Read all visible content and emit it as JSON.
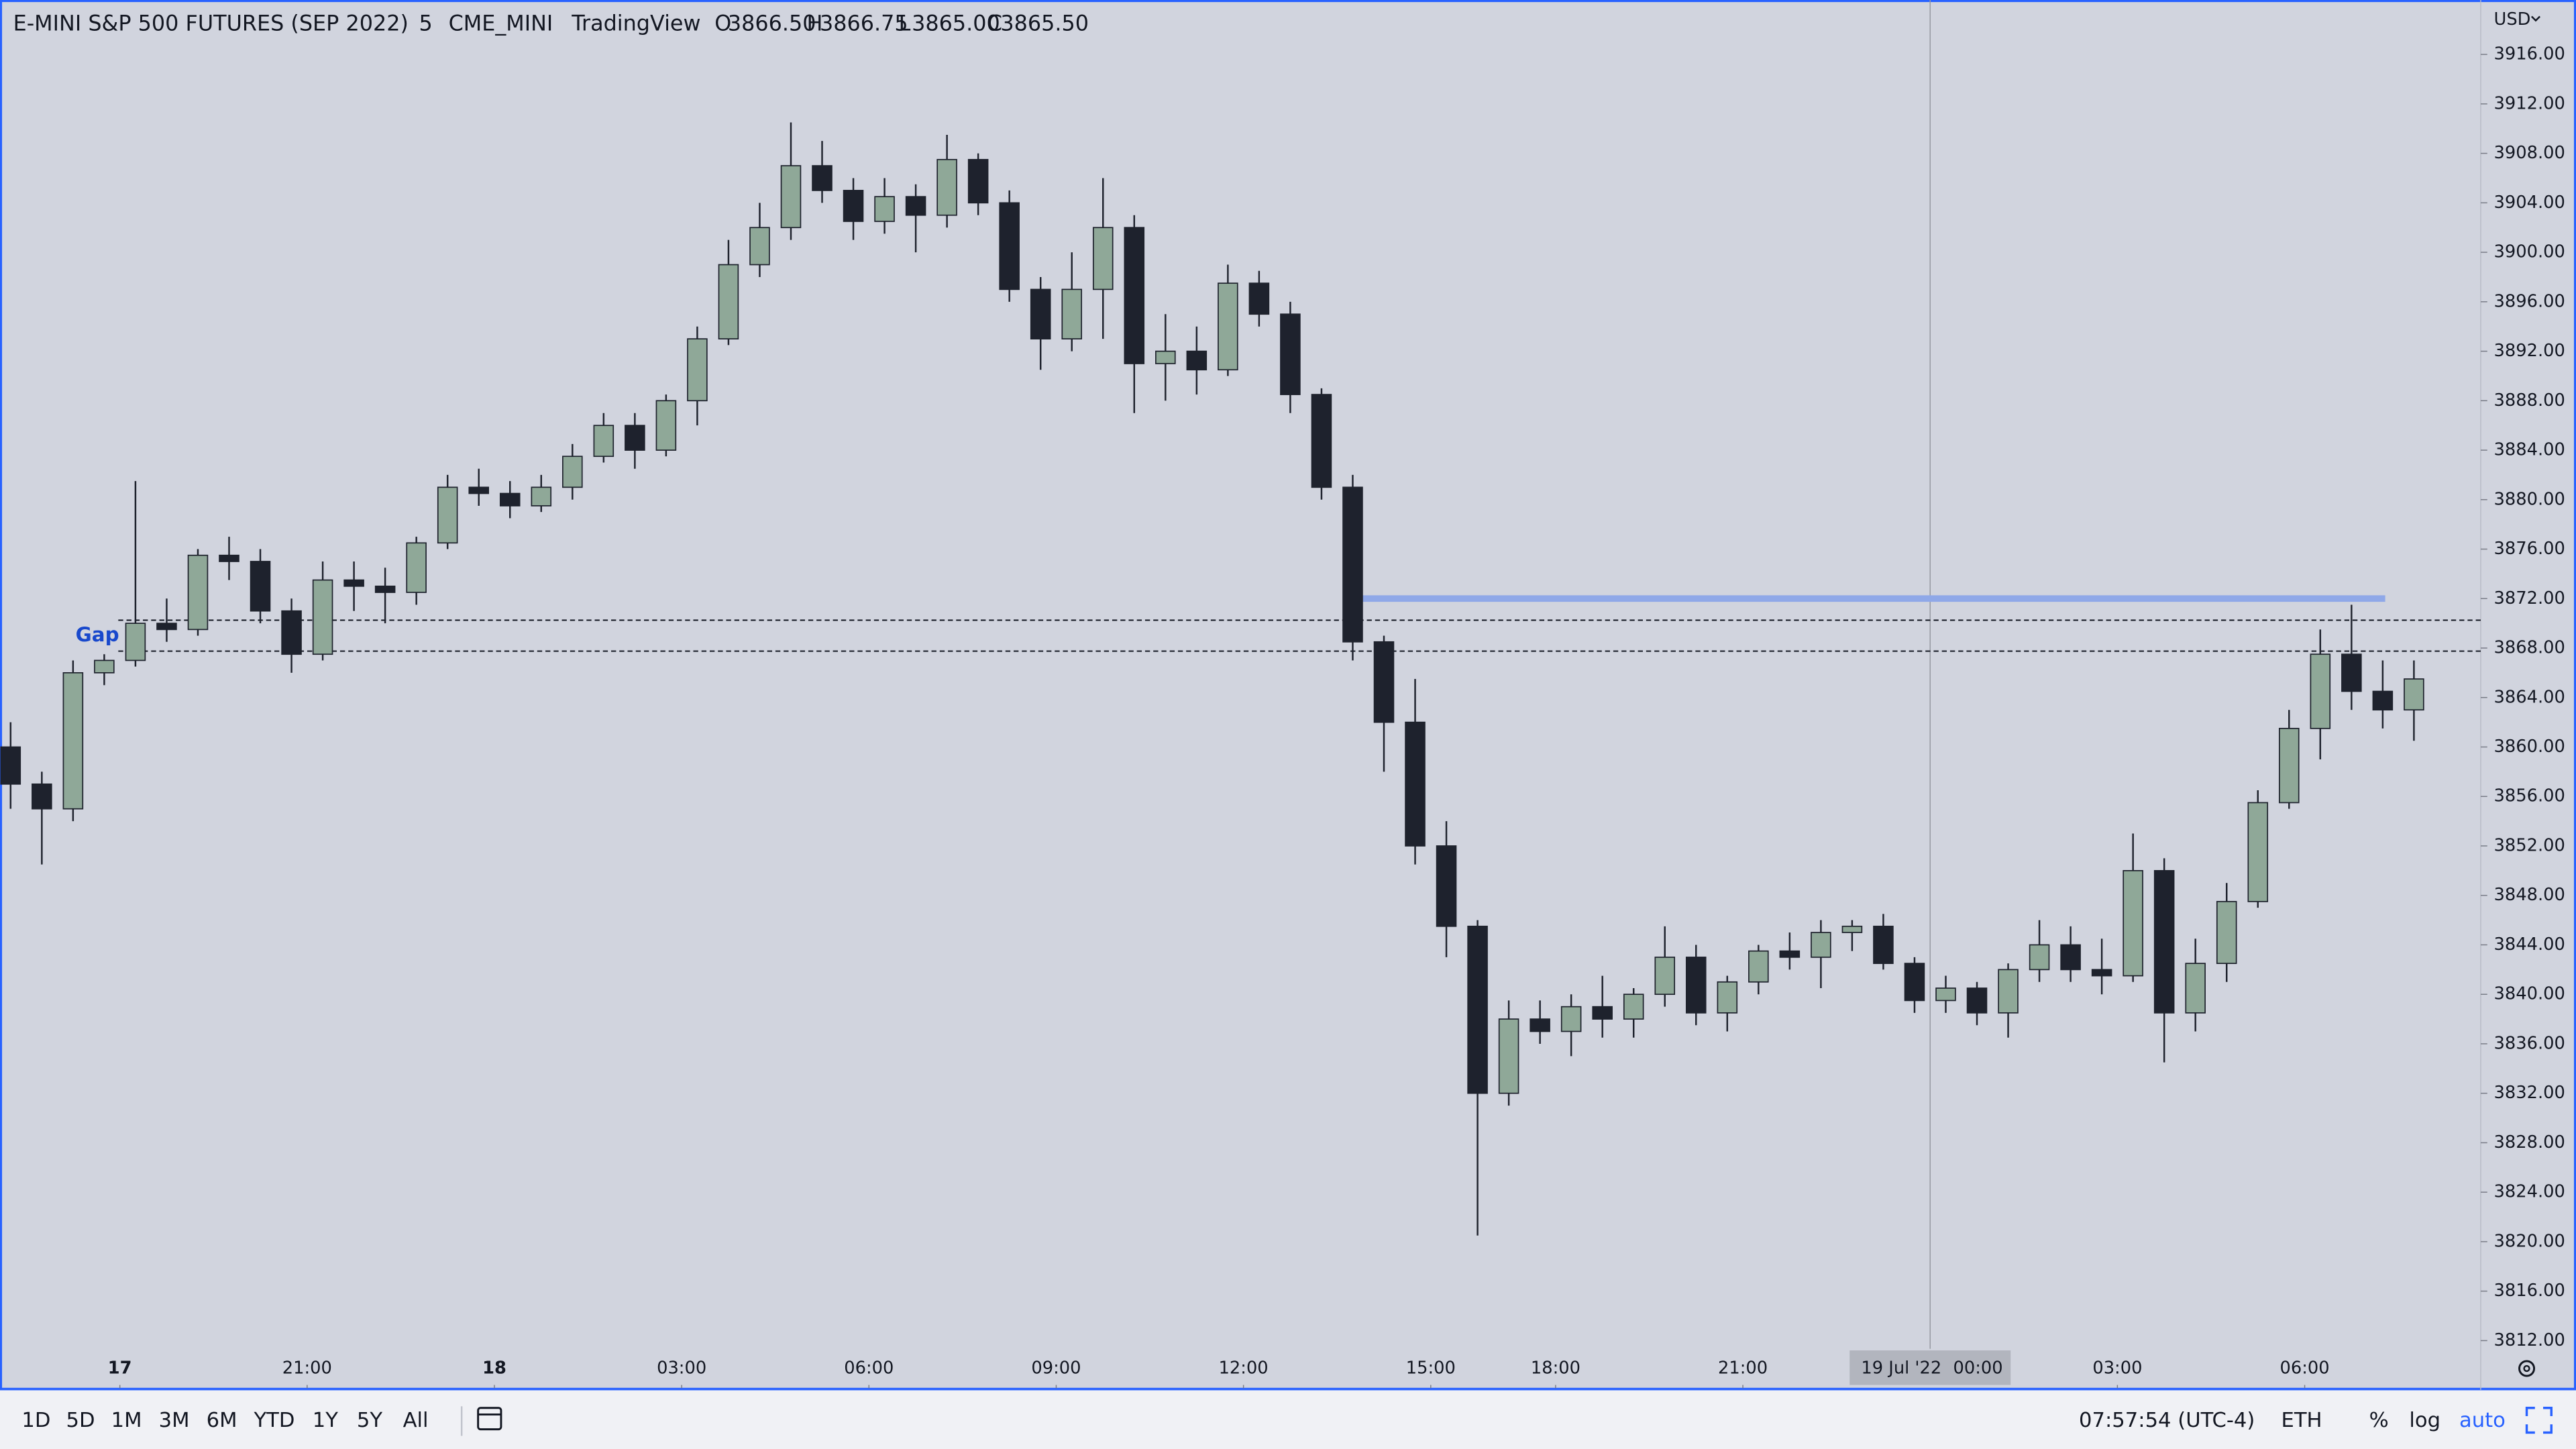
{
  "chart_data": {
    "type": "candlestick",
    "title": "E-MINI S&P 500 FUTURES (SEP 2022)",
    "interval": "5",
    "exchange": "CME_MINI",
    "source": "TradingView",
    "legend_ohlc": [
      {
        "label": "O",
        "value": "3866.50"
      },
      {
        "label": "H",
        "value": "3866.75"
      },
      {
        "label": "L",
        "value": "3865.00"
      },
      {
        "label": "C",
        "value": "3865.50"
      }
    ],
    "currency": "USD",
    "x": [
      -1.75,
      -1.25,
      -0.75,
      -0.25,
      0.25,
      0.75,
      1.25,
      1.75,
      2.25,
      2.75,
      3.25,
      3.75,
      4.25,
      4.75,
      5.25,
      5.75,
      6.25,
      6.75,
      7.25,
      7.75,
      8.25,
      8.75,
      9.25,
      9.75,
      10.25,
      10.75,
      11.25,
      11.75,
      12.25,
      12.75,
      13.25,
      13.75,
      14.25,
      14.75,
      15.25,
      15.75,
      16.25,
      16.75,
      17.25,
      17.75,
      18.25,
      18.75,
      19.25,
      19.75,
      20.25,
      20.75,
      21.25,
      21.75,
      22.25,
      22.75,
      23.25,
      23.75,
      24.25,
      24.75,
      25.25,
      25.75,
      26.25,
      26.75,
      27.25,
      27.75,
      28.25,
      28.75,
      29.25,
      29.75,
      30.25,
      30.75,
      31.25,
      31.75,
      32.25,
      32.75,
      33.25,
      33.75,
      34.25,
      34.75,
      35.25,
      35.75,
      36.25,
      36.75
    ],
    "open": [
      3860,
      3857,
      3855,
      3866,
      3867,
      3870,
      3869.5,
      3875.5,
      3875,
      3871,
      3867.5,
      3873.5,
      3873,
      3872.5,
      3876.5,
      3881,
      3880.5,
      3879.5,
      3881,
      3883.5,
      3886,
      3884,
      3888,
      3893,
      3899,
      3902,
      3907,
      3905,
      3902.5,
      3904.5,
      3903,
      3907.5,
      3904,
      3897,
      3893,
      3897,
      3902,
      3891,
      3892,
      3890.5,
      3897.5,
      3895,
      3888.5,
      3881,
      3868.5,
      3862,
      3852,
      3845.5,
      3832,
      3838,
      3837,
      3839,
      3838,
      3840,
      3843,
      3838.5,
      3841,
      3843.5,
      3843,
      3845,
      3845.5,
      3842.5,
      3839.5,
      3840.5,
      3838.5,
      3842,
      3844,
      3842,
      3841.5,
      3850,
      3838.5,
      3842.5,
      3847.5,
      3855.5,
      3861.5,
      3867.5,
      3864.5,
      3863
    ],
    "high": [
      3862,
      3858,
      3867,
      3867.5,
      3881.5,
      3872,
      3876,
      3877,
      3876,
      3872,
      3875,
      3875,
      3874.5,
      3877,
      3882,
      3882.5,
      3881.5,
      3882,
      3884.5,
      3887,
      3887,
      3888.5,
      3894,
      3901,
      3904,
      3910.5,
      3909,
      3906,
      3906,
      3905.5,
      3909.5,
      3908,
      3905,
      3898,
      3900,
      3906,
      3903,
      3895,
      3894,
      3899,
      3898.5,
      3896,
      3889,
      3882,
      3869,
      3865.5,
      3854,
      3846,
      3839.5,
      3839.5,
      3840,
      3841.5,
      3840.5,
      3845.5,
      3844,
      3841.5,
      3844,
      3845,
      3846,
      3846,
      3846.5,
      3843,
      3841.5,
      3841,
      3842.5,
      3846,
      3845.5,
      3844.5,
      3853,
      3851,
      3844.5,
      3849,
      3856.5,
      3863,
      3869.5,
      3871.5,
      3867,
      3867
    ],
    "low": [
      3855,
      3850.5,
      3854,
      3865,
      3866.5,
      3868.5,
      3869,
      3873.5,
      3870,
      3866,
      3867,
      3871,
      3870,
      3871.5,
      3876,
      3879.5,
      3878.5,
      3879,
      3880,
      3883,
      3882.5,
      3883.5,
      3886,
      3892.5,
      3898,
      3901,
      3904,
      3901,
      3901.5,
      3900,
      3902,
      3903,
      3896,
      3890.5,
      3892,
      3893,
      3887,
      3888,
      3888.5,
      3890,
      3894,
      3887,
      3880,
      3867,
      3858,
      3850.5,
      3843,
      3820.5,
      3831,
      3836,
      3835,
      3836.5,
      3836.5,
      3839,
      3837.5,
      3837,
      3840,
      3842,
      3840.5,
      3843.5,
      3842,
      3838.5,
      3838.5,
      3837.5,
      3836.5,
      3841,
      3841,
      3840,
      3841,
      3834.5,
      3837,
      3841,
      3847,
      3855,
      3859,
      3863,
      3861.5,
      3860.5
    ],
    "close": [
      3857,
      3855,
      3866,
      3867,
      3870,
      3869.5,
      3875.5,
      3875,
      3871,
      3867.5,
      3873.5,
      3873,
      3872.5,
      3876.5,
      3881,
      3880.5,
      3879.5,
      3881,
      3883.5,
      3886,
      3884,
      3888,
      3893,
      3899,
      3902,
      3907,
      3905,
      3902.5,
      3904.5,
      3903,
      3907.5,
      3904,
      3897,
      3893,
      3897,
      3902,
      3891,
      3892,
      3890.5,
      3897.5,
      3895,
      3888.5,
      3881,
      3868.5,
      3862,
      3852,
      3845.5,
      3832,
      3838,
      3837,
      3839,
      3838,
      3840,
      3843,
      3838.5,
      3841,
      3843.5,
      3843,
      3845,
      3845.5,
      3842.5,
      3839.5,
      3840.5,
      3838.5,
      3842,
      3844,
      3842,
      3841.5,
      3850,
      3838.5,
      3842.5,
      3847.5,
      3855.5,
      3861.5,
      3867.5,
      3864.5,
      3863,
      3865.5
    ],
    "up_color": "#8fa898",
    "down_color": "#1e222d",
    "xlim": [
      -1.92,
      37.82
    ],
    "xticks": [
      {
        "value": 0,
        "label": "17"
      },
      {
        "value": 3,
        "label": "21:00"
      },
      {
        "value": 6,
        "label": "18"
      },
      {
        "value": 9,
        "label": "03:00"
      },
      {
        "value": 12,
        "label": "06:00"
      },
      {
        "value": 15,
        "label": "09:00"
      },
      {
        "value": 18,
        "label": "12:00"
      },
      {
        "value": 21,
        "label": "15:00"
      },
      {
        "value": 23,
        "label": "18:00"
      },
      {
        "value": 26,
        "label": "21:00"
      },
      {
        "value": 32,
        "label": "03:00"
      },
      {
        "value": 35,
        "label": "06:00"
      }
    ],
    "ylim": [
      3808.15,
      3920.4
    ],
    "yticks": [
      {
        "value": 3812,
        "label": "3812.00"
      },
      {
        "value": 3816,
        "label": "3816.00"
      },
      {
        "value": 3820,
        "label": "3820.00"
      },
      {
        "value": 3824,
        "label": "3824.00"
      },
      {
        "value": 3828,
        "label": "3828.00"
      },
      {
        "value": 3832,
        "label": "3832.00"
      },
      {
        "value": 3836,
        "label": "3836.00"
      },
      {
        "value": 3840,
        "label": "3840.00"
      },
      {
        "value": 3844,
        "label": "3844.00"
      },
      {
        "value": 3848,
        "label": "3848.00"
      },
      {
        "value": 3852,
        "label": "3852.00"
      },
      {
        "value": 3856,
        "label": "3856.00"
      },
      {
        "value": 3860,
        "label": "3860.00"
      },
      {
        "value": 3864,
        "label": "3864.00"
      },
      {
        "value": 3868,
        "label": "3868.00"
      },
      {
        "value": 3872,
        "label": "3872.00"
      },
      {
        "value": 3876,
        "label": "3876.00"
      },
      {
        "value": 3880,
        "label": "3880.00"
      },
      {
        "value": 3884,
        "label": "3884.00"
      },
      {
        "value": 3888,
        "label": "3888.00"
      },
      {
        "value": 3892,
        "label": "3892.00"
      },
      {
        "value": 3896,
        "label": "3896.00"
      },
      {
        "value": 3900,
        "label": "3900.00"
      },
      {
        "value": 3904,
        "label": "3904.00"
      },
      {
        "value": 3908,
        "label": "3908.00"
      },
      {
        "value": 3912,
        "label": "3912.00"
      },
      {
        "value": 3916,
        "label": "3916.00"
      }
    ],
    "hlines": [
      {
        "value": 3870.25
      },
      {
        "value": 3867.75
      }
    ],
    "gap_label": "Gap",
    "level": {
      "value": 3872,
      "x": [
        19.74,
        36.29
      ],
      "color": "#8fa8e8"
    },
    "crosshair": {
      "x": 29,
      "date": "19 Jul '22",
      "time": "00:00"
    }
  },
  "toolbar": {
    "ranges": [
      "1D",
      "5D",
      "1M",
      "3M",
      "6M",
      "YTD",
      "1Y",
      "5Y",
      "All"
    ],
    "clock": "07:57:54 (UTC-4)",
    "session": "ETH",
    "options": [
      "%",
      "log",
      "auto"
    ]
  }
}
